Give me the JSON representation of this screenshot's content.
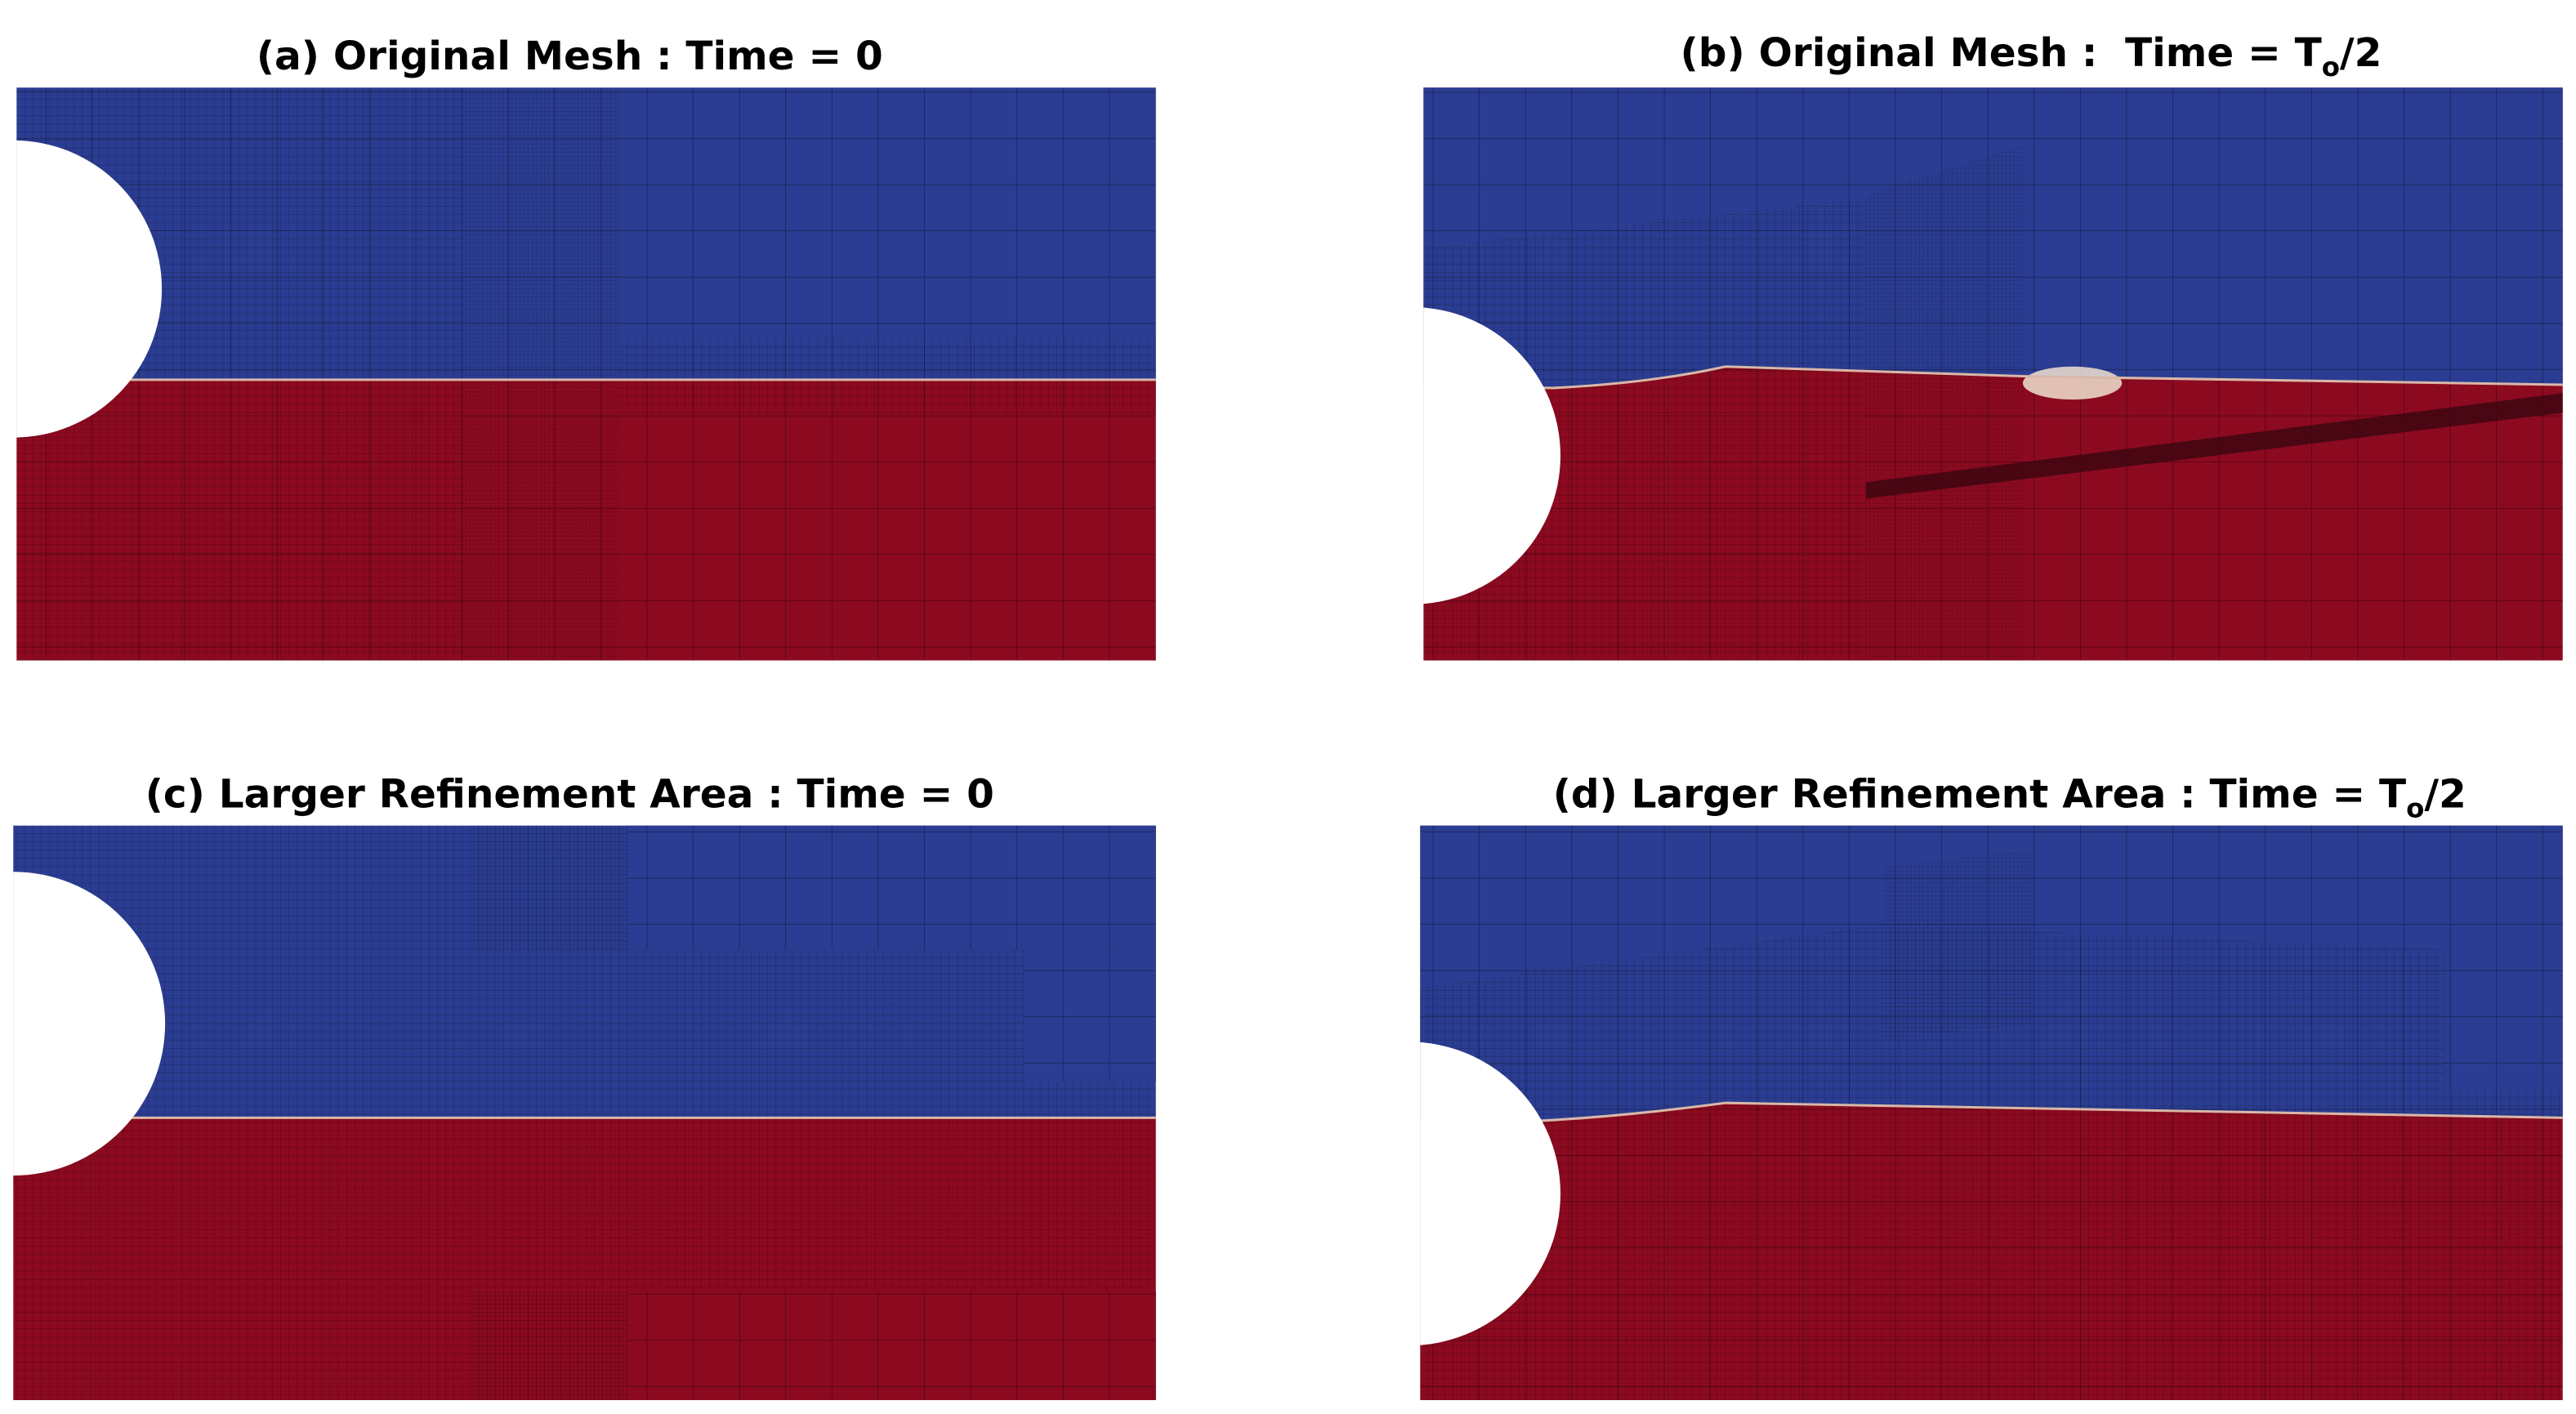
{
  "panels": [
    {
      "title": {
        "text": "(a) Original Mesh : Time = 0"
      }
    },
    {
      "title": {
        "text": "(b) Original Mesh :  Time = T",
        "subscript": "o",
        "suffix": "/2"
      }
    },
    {
      "title": {
        "text": "(c) Larger Refinement Area : Time = 0"
      }
    },
    {
      "title": {
        "text": "(d) Larger Refinement Area : Time = T",
        "subscript": "o",
        "suffix": "/2"
      }
    }
  ]
}
